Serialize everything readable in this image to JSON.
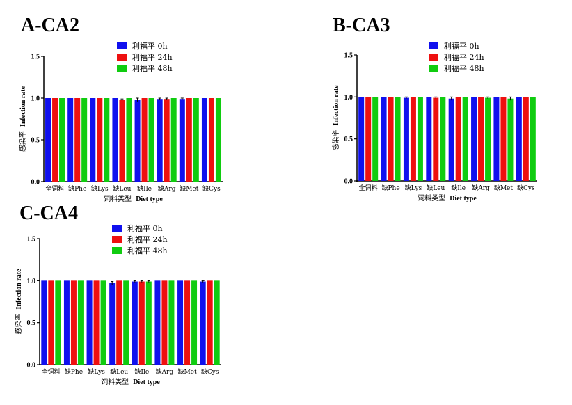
{
  "chart_data": [
    {
      "type": "bar",
      "title": "A-CA2",
      "categories": [
        "全饲料",
        "缺Phe",
        "缺Lys",
        "缺Leu",
        "缺Ile",
        "缺Arg",
        "缺Met",
        "缺Cys"
      ],
      "series": [
        {
          "name": "利福平 0h",
          "color": "#1010ee",
          "values": [
            1.0,
            1.0,
            1.0,
            1.0,
            0.98,
            0.99,
            0.99,
            1.0
          ],
          "errors": [
            0,
            0,
            0,
            0,
            0.02,
            0.01,
            0.01,
            0
          ]
        },
        {
          "name": "利福平 24h",
          "color": "#ee1010",
          "values": [
            1.0,
            1.0,
            1.0,
            0.98,
            1.0,
            0.99,
            1.0,
            1.0
          ],
          "errors": [
            0,
            0,
            0,
            0.01,
            0,
            0.01,
            0,
            0
          ]
        },
        {
          "name": "利福平 48h",
          "color": "#10cc10",
          "values": [
            1.0,
            1.0,
            1.0,
            1.0,
            1.0,
            1.0,
            1.0,
            1.0
          ],
          "errors": [
            0,
            0,
            0,
            0,
            0,
            0,
            0,
            0
          ]
        }
      ],
      "ylabel_cn": "感染率",
      "ylabel_en": "Infection rate",
      "xlabel_cn": "饲料类型",
      "xlabel_en": "Diet type",
      "ylim": [
        0,
        1.5
      ],
      "yticks": [
        "0.0",
        "0.5",
        "1.0",
        "1.5"
      ],
      "legend": "top-center",
      "grid": false
    },
    {
      "type": "bar",
      "title": "B-CA3",
      "categories": [
        "全饲料",
        "缺Phe",
        "缺Lys",
        "缺Leu",
        "缺Ile",
        "缺Arg",
        "缺Met",
        "缺Cys"
      ],
      "series": [
        {
          "name": "利福平 0h",
          "color": "#1010ee",
          "values": [
            1.0,
            1.0,
            0.99,
            1.0,
            0.98,
            1.0,
            1.0,
            1.0
          ],
          "errors": [
            0,
            0,
            0.01,
            0,
            0.02,
            0,
            0,
            0
          ]
        },
        {
          "name": "利福平 24h",
          "color": "#ee1010",
          "values": [
            1.0,
            1.0,
            1.0,
            0.99,
            1.0,
            1.0,
            1.0,
            1.0
          ],
          "errors": [
            0,
            0,
            0,
            0.01,
            0,
            0,
            0,
            0
          ]
        },
        {
          "name": "利福平 48h",
          "color": "#10cc10",
          "values": [
            1.0,
            1.0,
            1.0,
            1.0,
            1.0,
            0.99,
            0.98,
            1.0
          ],
          "errors": [
            0,
            0,
            0,
            0,
            0,
            0.01,
            0.02,
            0
          ]
        }
      ],
      "ylabel_cn": "感染率",
      "ylabel_en": "Infection rate",
      "xlabel_cn": "饲料类型",
      "xlabel_en": "Diet type",
      "ylim": [
        0,
        1.5
      ],
      "yticks": [
        "0.0",
        "0.5",
        "1.0",
        "1.5"
      ],
      "legend": "top-center",
      "grid": false
    },
    {
      "type": "bar",
      "title": "C-CA4",
      "categories": [
        "全饲料",
        "缺Phe",
        "缺Lys",
        "缺Leu",
        "缺Ile",
        "缺Arg",
        "缺Met",
        "缺Cys"
      ],
      "series": [
        {
          "name": "利福平 0h",
          "color": "#1010ee",
          "values": [
            1.0,
            1.0,
            1.0,
            0.97,
            0.99,
            1.0,
            1.0,
            0.99
          ],
          "errors": [
            0,
            0,
            0,
            0.02,
            0.01,
            0,
            0,
            0.01
          ]
        },
        {
          "name": "利福平 24h",
          "color": "#ee1010",
          "values": [
            1.0,
            1.0,
            1.0,
            1.0,
            0.99,
            1.0,
            1.0,
            1.0
          ],
          "errors": [
            0,
            0,
            0,
            0,
            0.01,
            0,
            0,
            0
          ]
        },
        {
          "name": "利福平 48h",
          "color": "#10cc10",
          "values": [
            1.0,
            1.0,
            1.0,
            1.0,
            0.99,
            1.0,
            1.0,
            1.0
          ],
          "errors": [
            0,
            0,
            0,
            0,
            0.01,
            0,
            0,
            0
          ]
        }
      ],
      "ylabel_cn": "感染率",
      "ylabel_en": "Infection rate",
      "xlabel_cn": "饲料类型",
      "xlabel_en": "Diet type",
      "ylim": [
        0,
        1.5
      ],
      "yticks": [
        "0.0",
        "0.5",
        "1.0",
        "1.5"
      ],
      "legend": "top-center",
      "grid": false
    }
  ]
}
